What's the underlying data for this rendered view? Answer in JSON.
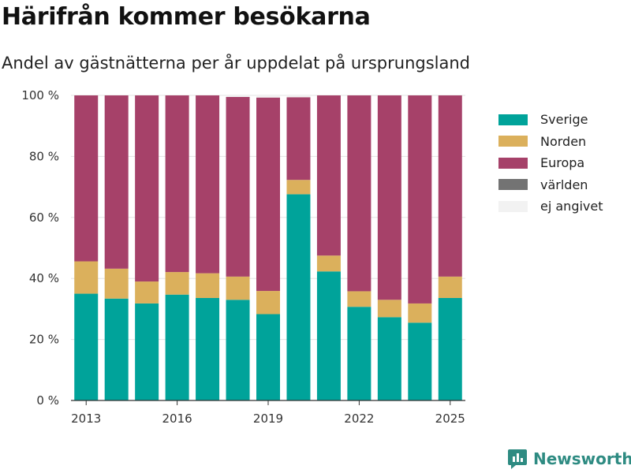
{
  "title": "Härifrån kommer besökarna",
  "subtitle": "Andel av gästnätterna per år uppdelat på ursprungsland",
  "brand": {
    "name": "Newsworthy",
    "icon": "bar-chart-icon",
    "color": "#2e8b82"
  },
  "chart_data": {
    "type": "bar",
    "stacked": true,
    "categories": [
      "2013",
      "2014",
      "2015",
      "2016",
      "2017",
      "2018",
      "2019",
      "2020",
      "2021",
      "2022",
      "2023",
      "2024",
      "2025"
    ],
    "x_tick_labels": [
      "2013",
      "2016",
      "2019",
      "2022",
      "2025"
    ],
    "series": [
      {
        "name": "Sverige",
        "color": "#00a39a",
        "values": [
          35,
          33.4,
          31.8,
          34.7,
          33.6,
          33,
          28.3,
          67.6,
          42.3,
          30.7,
          27.3,
          25.5,
          33.6
        ]
      },
      {
        "name": "Norden",
        "color": "#dbb05c",
        "values": [
          10.6,
          9.8,
          7.2,
          7.4,
          8.1,
          7.6,
          7.6,
          4.7,
          5.2,
          5.1,
          5.7,
          6.3,
          7
        ]
      },
      {
        "name": "Europa",
        "color": "#a64169",
        "values": [
          54.4,
          56.8,
          61,
          57.9,
          58.3,
          58.9,
          63.4,
          27.1,
          52.5,
          64.2,
          67,
          68.2,
          59.4
        ]
      },
      {
        "name": "världen",
        "color": "#737373",
        "values": [
          0,
          0,
          0,
          0,
          0,
          0,
          0,
          0,
          0,
          0,
          0,
          0,
          0
        ]
      },
      {
        "name": "ej angivet",
        "color": "#f2f2f2",
        "values": [
          0,
          0,
          0,
          0,
          0,
          0.5,
          0.7,
          0.6,
          0,
          0,
          0,
          0,
          0
        ]
      }
    ],
    "y_ticks": [
      0,
      20,
      40,
      60,
      80,
      100
    ],
    "y_tick_suffix": " %",
    "ylim": [
      0,
      100
    ],
    "xlabel": "",
    "ylabel": "",
    "grid": true,
    "legend_position": "right"
  }
}
